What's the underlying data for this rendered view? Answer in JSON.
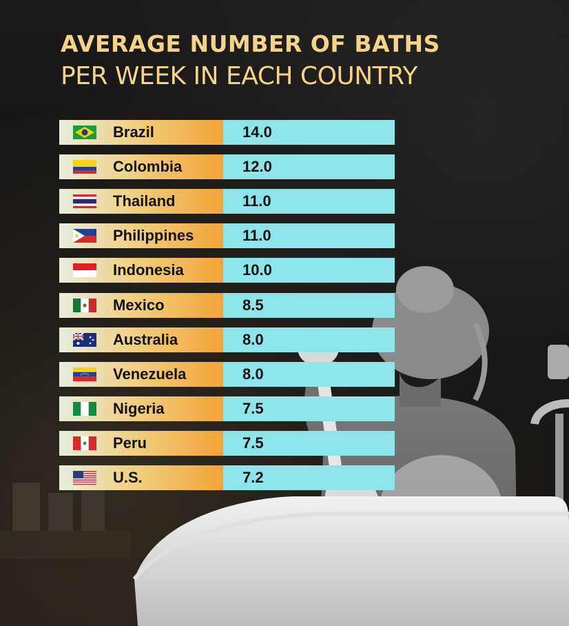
{
  "title": {
    "line1": "AVERAGE NUMBER OF BATHS",
    "line2": "PER WEEK IN EACH COUNTRY"
  },
  "chart_data": {
    "type": "table",
    "title": "AVERAGE NUMBER OF BATHS PER WEEK IN EACH COUNTRY",
    "categories": [
      "Brazil",
      "Colombia",
      "Thailand",
      "Philippines",
      "Indonesia",
      "Mexico",
      "Australia",
      "Venezuela",
      "Nigeria",
      "Peru",
      "U.S."
    ],
    "values": [
      "14.0",
      "12.0",
      "11.0",
      "11.0",
      "10.0",
      "8.5",
      "8.0",
      "8.0",
      "7.5",
      "7.5",
      "7.2"
    ],
    "flags": [
      "brazil-flag-icon",
      "colombia-flag-icon",
      "thailand-flag-icon",
      "philippines-flag-icon",
      "indonesia-flag-icon",
      "mexico-flag-icon",
      "australia-flag-icon",
      "venezuela-flag-icon",
      "nigeria-flag-icon",
      "peru-flag-icon",
      "us-flag-icon"
    ]
  },
  "colors": {
    "title": "#f4d48a",
    "value_cell": "#8de5ea",
    "name_cell_start": "#e7eede",
    "name_cell_end": "#f3a437",
    "background": "#141312"
  }
}
